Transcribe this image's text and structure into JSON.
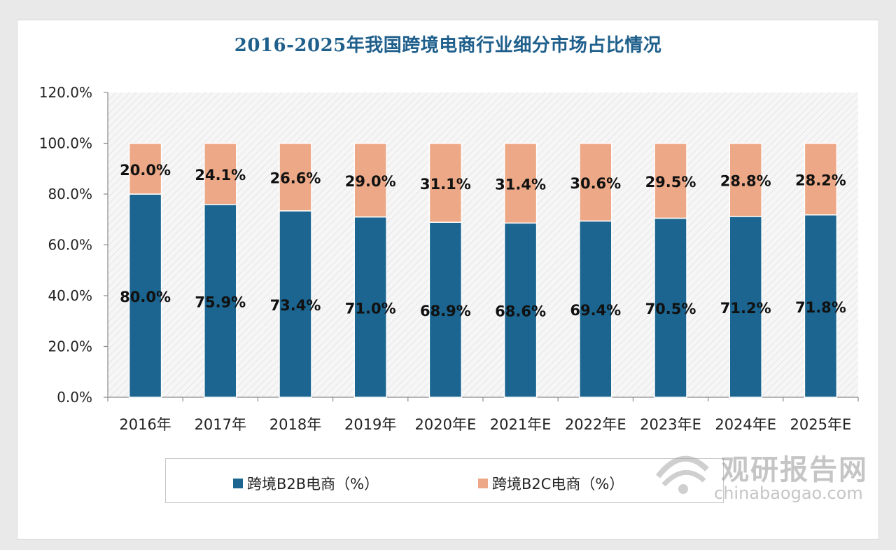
{
  "chart_data": {
    "type": "bar",
    "stacked": true,
    "title": "2016-2025年我国跨境电商行业细分市场占比情况",
    "categories": [
      "2016年",
      "2017年",
      "2018年",
      "2019年",
      "2020年E",
      "2021年E",
      "2022年E",
      "2023年E",
      "2024年E",
      "2025年E"
    ],
    "series": [
      {
        "name": "跨境B2B电商（%）",
        "color": "#1b6590",
        "values": [
          80.0,
          75.9,
          73.4,
          71.0,
          68.9,
          68.6,
          69.4,
          70.5,
          71.2,
          71.8
        ]
      },
      {
        "name": "跨境B2C电商（%）",
        "color": "#eda987",
        "values": [
          20.0,
          24.1,
          26.6,
          29.0,
          31.1,
          31.4,
          30.6,
          29.5,
          28.8,
          28.2
        ]
      }
    ],
    "y_ticks": [
      "0.0%",
      "20.0%",
      "40.0%",
      "60.0%",
      "80.0%",
      "100.0%",
      "120.0%"
    ],
    "ylim": [
      0,
      120
    ],
    "xlabel": "",
    "ylabel": "",
    "legend_position": "bottom"
  },
  "watermark": {
    "name": "观研报告网",
    "url": "chinabaogao.com"
  }
}
